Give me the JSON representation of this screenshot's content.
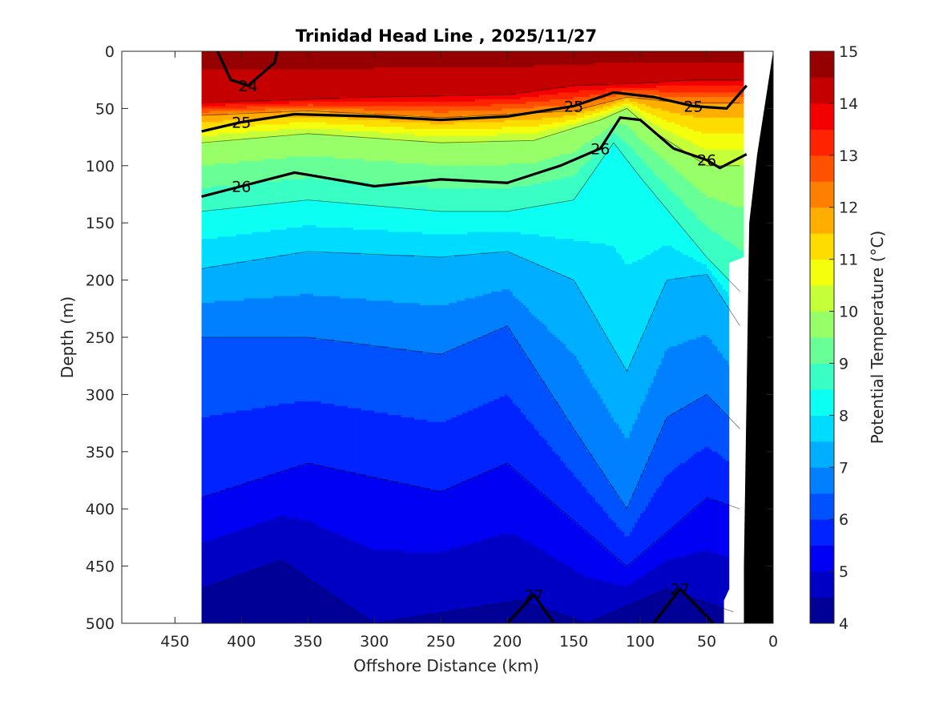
{
  "chart_data": {
    "type": "heatmap",
    "title": "Trinidad Head Line , 2025/11/27",
    "xlabel": "Offshore Distance (km)",
    "ylabel": "Depth (m)",
    "xlim": [
      490,
      0
    ],
    "ylim": [
      500,
      0
    ],
    "x_reversed": true,
    "y_reversed": true,
    "x_ticks": [
      "450",
      "400",
      "350",
      "300",
      "250",
      "200",
      "150",
      "100",
      "50",
      "0"
    ],
    "x_tick_values": [
      450,
      400,
      350,
      300,
      250,
      200,
      150,
      100,
      50,
      0
    ],
    "y_ticks": [
      "0",
      "50",
      "100",
      "150",
      "200",
      "250",
      "300",
      "350",
      "400",
      "450",
      "500"
    ],
    "y_tick_values": [
      0,
      50,
      100,
      150,
      200,
      250,
      300,
      350,
      400,
      450,
      500
    ],
    "colorbar": {
      "label": "Potential Temperature (°C)",
      "ticks": [
        "4",
        "5",
        "6",
        "7",
        "8",
        "9",
        "10",
        "11",
        "12",
        "13",
        "14",
        "15"
      ],
      "tick_values": [
        4,
        5,
        6,
        7,
        8,
        9,
        10,
        11,
        12,
        13,
        14,
        15
      ],
      "range": [
        4,
        15
      ],
      "colormap": "jet",
      "levels": [
        4,
        4.5,
        5,
        5.5,
        6,
        6.5,
        7,
        7.5,
        8,
        8.5,
        9,
        9.5,
        10,
        10.5,
        11,
        11.5,
        12,
        12.5,
        13,
        13.5,
        14,
        14.5,
        15
      ]
    },
    "data_extent_km": [
      430,
      22
    ],
    "isotherm_depths_m": [
      {
        "temp": 14,
        "depth": [
          [
            430,
            45
          ],
          [
            300,
            40
          ],
          [
            200,
            38
          ],
          [
            150,
            30
          ],
          [
            100,
            28
          ],
          [
            60,
            25
          ],
          [
            25,
            25
          ]
        ]
      },
      {
        "temp": 12,
        "depth": [
          [
            430,
            56
          ],
          [
            350,
            52
          ],
          [
            250,
            58
          ],
          [
            150,
            52
          ],
          [
            110,
            40
          ],
          [
            70,
            45
          ],
          [
            25,
            45
          ]
        ]
      },
      {
        "temp": 10,
        "depth": [
          [
            430,
            80
          ],
          [
            350,
            72
          ],
          [
            250,
            80
          ],
          [
            180,
            78
          ],
          [
            130,
            60
          ],
          [
            110,
            50
          ],
          [
            90,
            70
          ],
          [
            50,
            100
          ],
          [
            25,
            100
          ]
        ]
      },
      {
        "temp": 8.5,
        "depth": [
          [
            430,
            140
          ],
          [
            350,
            130
          ],
          [
            250,
            140
          ],
          [
            200,
            140
          ],
          [
            150,
            130
          ],
          [
            120,
            80
          ],
          [
            100,
            110
          ],
          [
            50,
            180
          ],
          [
            25,
            210
          ]
        ]
      },
      {
        "temp": 7.5,
        "depth": [
          [
            430,
            190
          ],
          [
            350,
            175
          ],
          [
            250,
            180
          ],
          [
            200,
            175
          ],
          [
            150,
            200
          ],
          [
            110,
            280
          ],
          [
            80,
            200
          ],
          [
            50,
            195
          ],
          [
            25,
            240
          ]
        ]
      },
      {
        "temp": 6.5,
        "depth": [
          [
            430,
            250
          ],
          [
            350,
            250
          ],
          [
            250,
            265
          ],
          [
            200,
            240
          ],
          [
            150,
            330
          ],
          [
            110,
            400
          ],
          [
            80,
            320
          ],
          [
            50,
            300
          ],
          [
            25,
            330
          ]
        ]
      },
      {
        "temp": 5.5,
        "depth": [
          [
            430,
            390
          ],
          [
            350,
            360
          ],
          [
            250,
            385
          ],
          [
            200,
            360
          ],
          [
            150,
            410
          ],
          [
            110,
            450
          ],
          [
            80,
            420
          ],
          [
            50,
            390
          ],
          [
            25,
            400
          ]
        ]
      },
      {
        "temp": 4.5,
        "depth": [
          [
            430,
            470
          ],
          [
            370,
            445
          ],
          [
            300,
            500
          ],
          [
            190,
            480
          ],
          [
            140,
            500
          ],
          [
            80,
            470
          ],
          [
            30,
            490
          ]
        ]
      }
    ],
    "sigma_contours": [
      {
        "value": 24,
        "label": "24",
        "bold": true,
        "points": [
          [
            418,
            0
          ],
          [
            408,
            25
          ],
          [
            395,
            30
          ],
          [
            375,
            10
          ],
          [
            373,
            0
          ]
        ]
      },
      {
        "value": 25,
        "label": "25",
        "bold": true,
        "points": [
          [
            430,
            70
          ],
          [
            400,
            62
          ],
          [
            360,
            55
          ],
          [
            300,
            57
          ],
          [
            250,
            60
          ],
          [
            200,
            57
          ],
          [
            150,
            48
          ],
          [
            120,
            36
          ],
          [
            90,
            40
          ],
          [
            60,
            48
          ],
          [
            35,
            50
          ],
          [
            20,
            30
          ]
        ]
      },
      {
        "value": 26,
        "label": "26",
        "bold": true,
        "points": [
          [
            430,
            127
          ],
          [
            400,
            118
          ],
          [
            360,
            106
          ],
          [
            300,
            118
          ],
          [
            250,
            112
          ],
          [
            200,
            115
          ],
          [
            160,
            100
          ],
          [
            130,
            85
          ],
          [
            115,
            58
          ],
          [
            100,
            60
          ],
          [
            75,
            85
          ],
          [
            50,
            95
          ],
          [
            40,
            102
          ],
          [
            20,
            90
          ]
        ]
      },
      {
        "value": 27,
        "label": "27",
        "bold": true,
        "points": [
          [
            200,
            500
          ],
          [
            180,
            475
          ],
          [
            165,
            500
          ]
        ]
      },
      {
        "value": 27,
        "label": "27",
        "bold": true,
        "points": [
          [
            90,
            500
          ],
          [
            70,
            470
          ],
          [
            45,
            500
          ]
        ]
      }
    ]
  }
}
